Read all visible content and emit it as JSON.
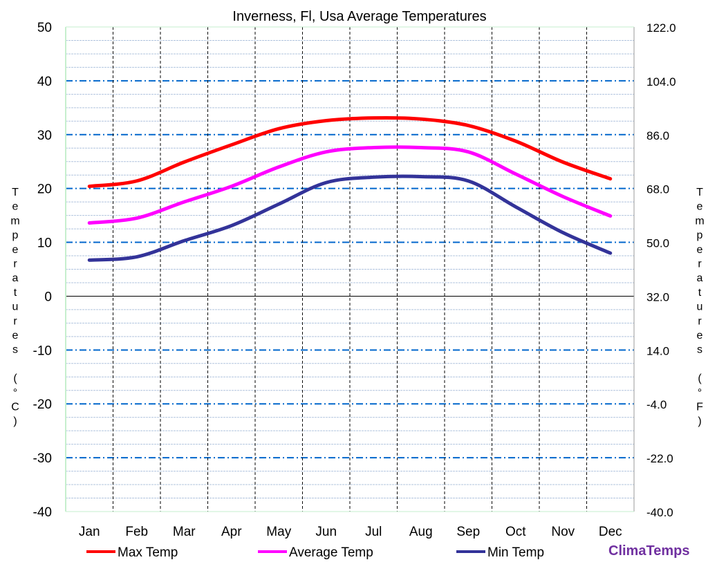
{
  "chart_data": {
    "type": "line",
    "title": "Inverness, Fl, Usa Average Temperatures",
    "ylabel": "Temperatures (°C)",
    "ylabel_right": "Temperatures (°F)",
    "categories": [
      "Jan",
      "Feb",
      "Mar",
      "Apr",
      "May",
      "Jun",
      "Jul",
      "Aug",
      "Sep",
      "Oct",
      "Nov",
      "Dec"
    ],
    "ylim": [
      -40,
      50
    ],
    "ylim_right": [
      -40.0,
      122.0
    ],
    "yticks": [
      "50",
      "40",
      "30",
      "20",
      "10",
      "0",
      "-10",
      "-20",
      "-30",
      "-40"
    ],
    "yticks_right": [
      "122.0",
      "104.0",
      "86.0",
      "68.0",
      "50.0",
      "32.0",
      "14.0",
      "-4.0",
      "-22.0",
      "-40.0"
    ],
    "grid": true,
    "legend": "bottom",
    "series": [
      {
        "name": "Max Temp",
        "color": "#ff0000",
        "values": [
          20.4,
          21.4,
          24.9,
          28.1,
          31.1,
          32.6,
          33.1,
          32.9,
          31.7,
          28.8,
          24.9,
          21.8
        ]
      },
      {
        "name": "Average Temp",
        "color": "#ff00ff",
        "values": [
          13.6,
          14.5,
          17.5,
          20.4,
          24.0,
          26.8,
          27.6,
          27.6,
          26.8,
          22.7,
          18.5,
          14.9
        ]
      },
      {
        "name": "Min Temp",
        "color": "#333399",
        "values": [
          6.7,
          7.3,
          10.3,
          13.1,
          17.1,
          21.1,
          22.1,
          22.2,
          21.4,
          16.6,
          11.8,
          8.0
        ]
      }
    ]
  },
  "brand": "ClimaTemps"
}
